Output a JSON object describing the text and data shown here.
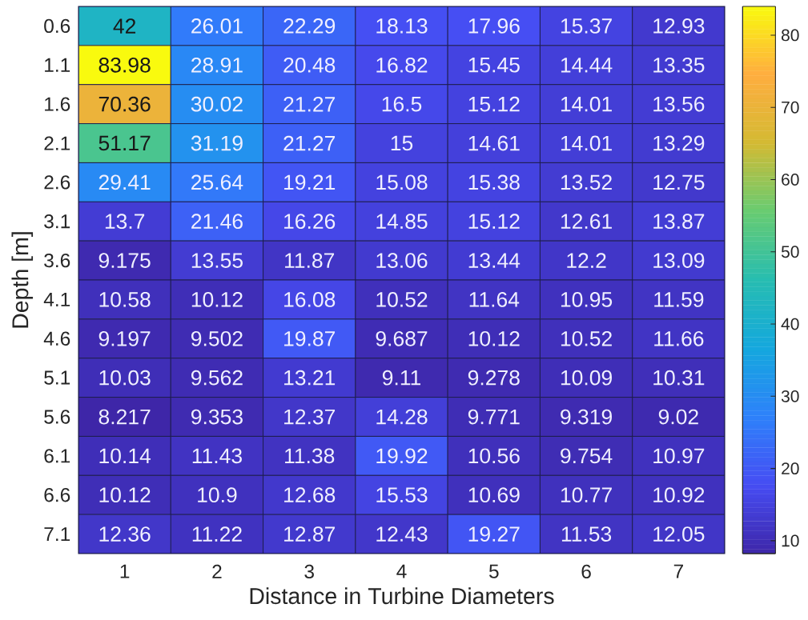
{
  "chart_data": {
    "type": "heatmap",
    "xlabel": "Distance in Turbine Diameters",
    "ylabel": "Depth [m]",
    "categories": [
      "1",
      "2",
      "3",
      "4",
      "5",
      "6",
      "7"
    ],
    "y_categories": [
      "0.6",
      "1.1",
      "1.6",
      "2.1",
      "2.6",
      "3.1",
      "3.6",
      "4.1",
      "4.6",
      "5.1",
      "5.6",
      "6.1",
      "6.6",
      "7.1"
    ],
    "cells": [
      [
        42,
        26.01,
        22.29,
        18.13,
        17.96,
        15.37,
        12.93
      ],
      [
        83.98,
        28.91,
        20.48,
        16.82,
        15.45,
        14.44,
        13.35
      ],
      [
        70.36,
        30.02,
        21.27,
        16.5,
        15.12,
        14.01,
        13.56
      ],
      [
        51.17,
        31.19,
        21.27,
        15,
        14.61,
        14.01,
        13.29
      ],
      [
        29.41,
        25.64,
        19.21,
        15.08,
        15.38,
        13.52,
        12.75
      ],
      [
        13.7,
        21.46,
        16.26,
        14.85,
        15.12,
        12.61,
        13.87
      ],
      [
        9.175,
        13.55,
        11.87,
        13.06,
        13.44,
        12.2,
        13.09
      ],
      [
        10.58,
        10.12,
        16.08,
        10.52,
        11.64,
        10.95,
        11.59
      ],
      [
        9.197,
        9.502,
        19.87,
        9.687,
        10.12,
        10.52,
        11.66
      ],
      [
        10.03,
        9.562,
        13.21,
        9.11,
        9.278,
        10.09,
        10.31
      ],
      [
        8.217,
        9.353,
        12.37,
        14.28,
        9.771,
        9.319,
        9.02
      ],
      [
        10.14,
        11.43,
        11.38,
        19.92,
        10.56,
        9.754,
        10.97
      ],
      [
        10.12,
        10.9,
        12.68,
        15.53,
        10.69,
        10.77,
        10.92
      ],
      [
        12.36,
        11.22,
        12.87,
        12.43,
        19.27,
        11.53,
        12.05
      ]
    ],
    "clim": [
      8.217,
      83.98
    ],
    "cticks": [
      10,
      20,
      30,
      40,
      50,
      60,
      70,
      80
    ],
    "data_labels": true
  }
}
